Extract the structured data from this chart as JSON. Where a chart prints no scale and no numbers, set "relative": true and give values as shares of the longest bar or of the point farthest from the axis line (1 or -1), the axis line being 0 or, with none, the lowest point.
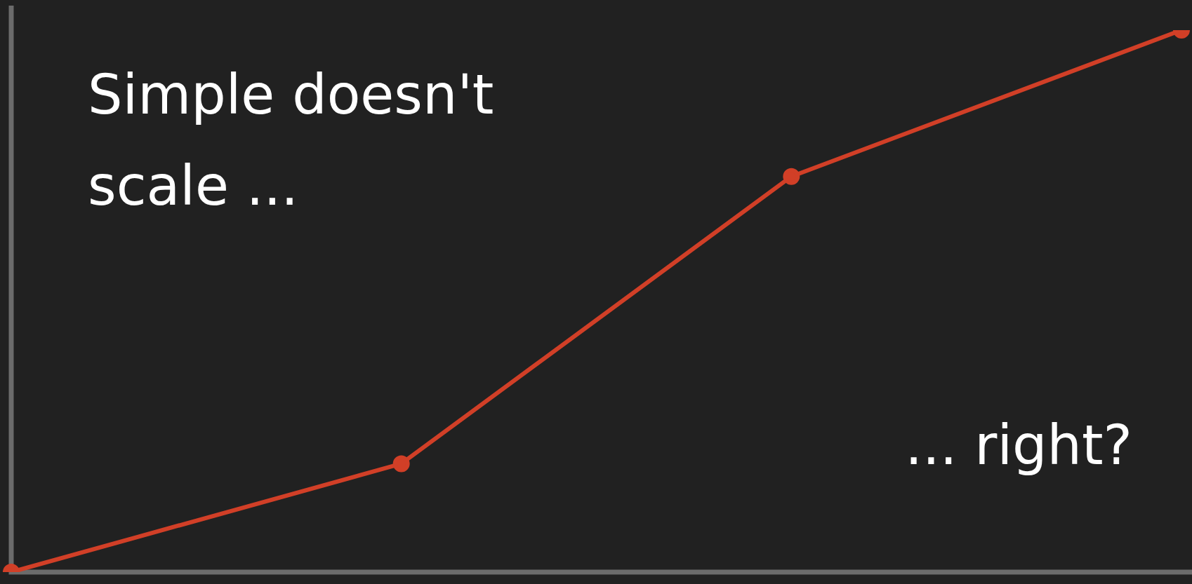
{
  "chart_data": {
    "type": "line",
    "relative": true,
    "categories": [
      null,
      null,
      null,
      null
    ],
    "series": [
      {
        "color": "#d13f27",
        "values": [
          0,
          0.2,
          0.73,
          1
        ]
      }
    ],
    "marker": "circle",
    "line_style": "solid",
    "legend": false,
    "tick_labels": false,
    "annotations": [
      "Simple doesn't scale ...",
      "... right?"
    ]
  }
}
